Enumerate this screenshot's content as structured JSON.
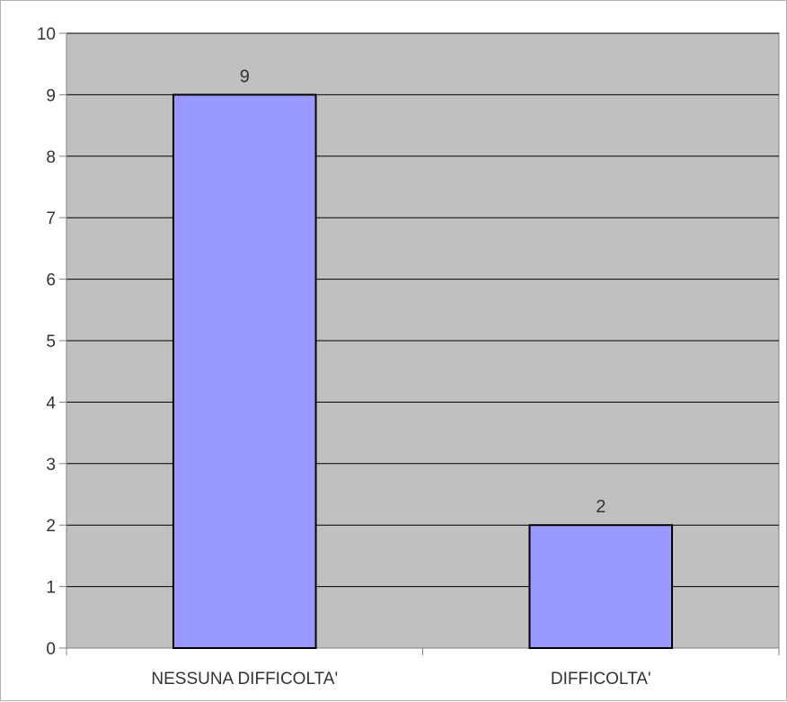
{
  "chart_data": {
    "type": "bar",
    "categories": [
      "NESSUNA DIFFICOLTA'",
      "DIFFICOLTA'"
    ],
    "values": [
      9,
      2
    ],
    "data_labels": [
      "9",
      "2"
    ],
    "title": "",
    "xlabel": "",
    "ylabel": "",
    "ylim": [
      0,
      10
    ],
    "yticks": [
      "0",
      "1",
      "2",
      "3",
      "4",
      "5",
      "6",
      "7",
      "8",
      "9",
      "10"
    ],
    "grid": true,
    "legend": "none",
    "colors": {
      "bar_fill": "#9999ff",
      "bar_stroke": "#000000",
      "plot_background": "#c0c0c0",
      "gridline": "#000000",
      "text": "#333333"
    }
  }
}
